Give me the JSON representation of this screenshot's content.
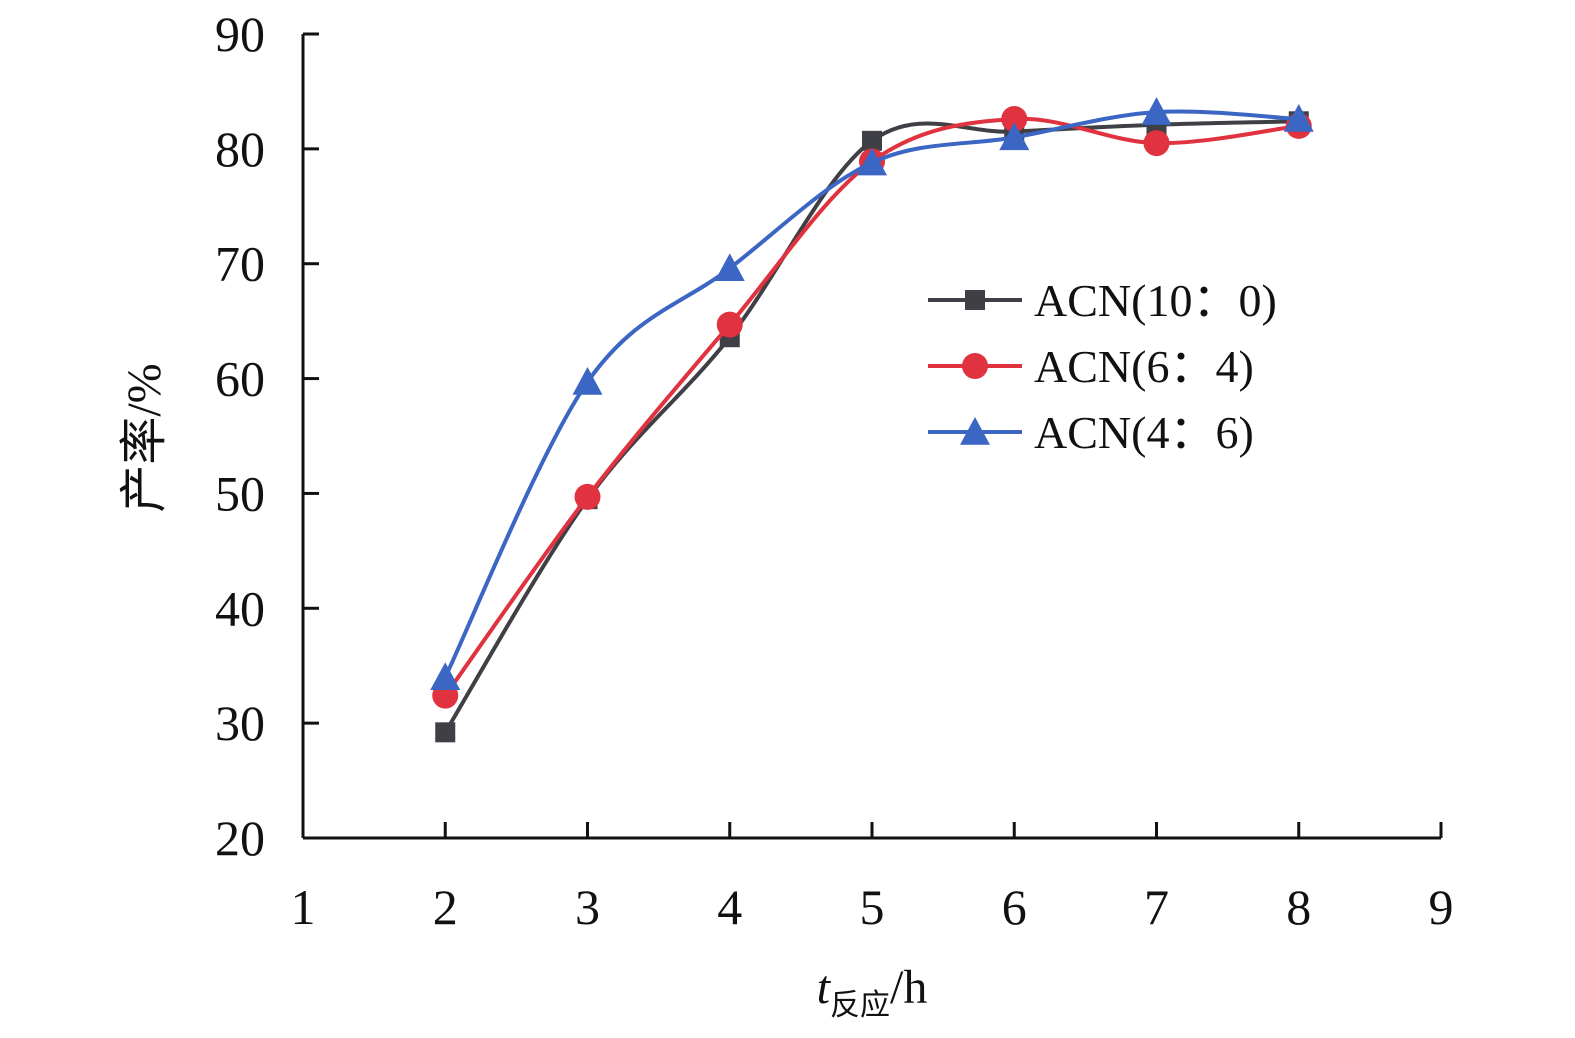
{
  "chart_data": {
    "type": "line",
    "xlabel": {
      "var": "t",
      "sub": "反应",
      "unit": "/h"
    },
    "ylabel": "产率/%",
    "xlim": [
      1,
      9
    ],
    "ylim": [
      20,
      90
    ],
    "xticks": [
      1,
      2,
      3,
      4,
      5,
      6,
      7,
      8,
      9
    ],
    "yticks": [
      20,
      30,
      40,
      50,
      60,
      70,
      80,
      90
    ],
    "grid": false,
    "legend_position": "center-right",
    "series": [
      {
        "name": "ACN(10：0)",
        "color": "#3f3f46",
        "marker": "square",
        "x": [
          2,
          3,
          4,
          5,
          6,
          7,
          8
        ],
        "y": [
          29.2,
          49.5,
          63.6,
          80.7,
          81.5,
          82.1,
          82.4
        ]
      },
      {
        "name": "ACN(6：4)",
        "color": "#e0323f",
        "marker": "circle",
        "x": [
          2,
          3,
          4,
          5,
          6,
          7,
          8
        ],
        "y": [
          32.4,
          49.7,
          64.7,
          78.9,
          82.6,
          80.5,
          82.0
        ]
      },
      {
        "name": "ACN(4：6)",
        "color": "#3b66c4",
        "marker": "triangle",
        "x": [
          2,
          3,
          4,
          5,
          6,
          7,
          8
        ],
        "y": [
          34.0,
          59.7,
          69.6,
          78.8,
          81.0,
          83.2,
          82.6
        ]
      }
    ]
  }
}
